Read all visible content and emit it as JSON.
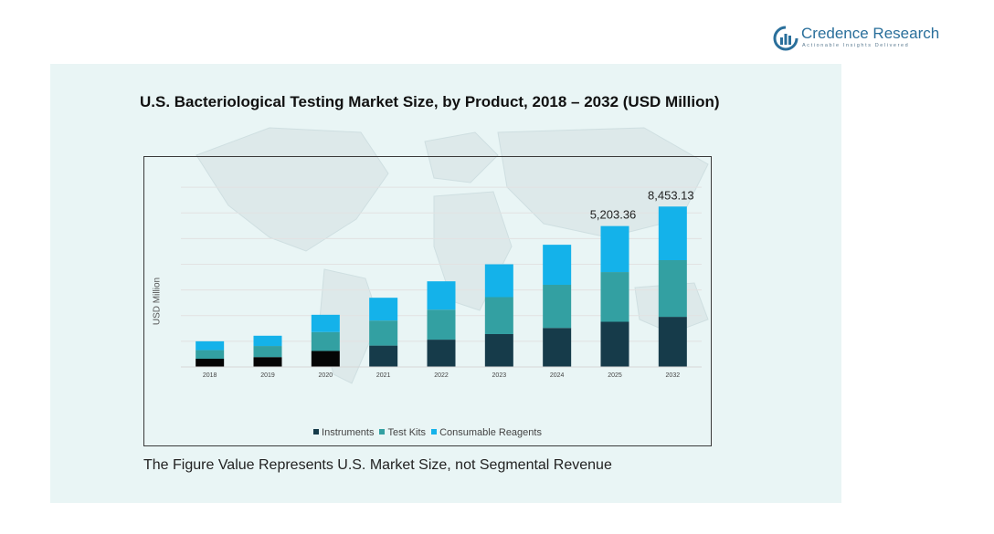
{
  "brand": {
    "name": "Credence Research",
    "tagline": "Actionable Insights Delivered",
    "color": "#2a6f9b",
    "icon": "credence-logo-icon"
  },
  "footnote": "The Figure Value Represents U.S. Market Size, not Segmental Revenue",
  "chart_data": {
    "type": "bar",
    "stacked": true,
    "title": "U.S. Bacteriological  Testing Market Size, by Product, 2018 – 2032 (USD Million)",
    "xlabel": "",
    "ylabel": "USD Million",
    "categories": [
      "2018",
      "2019",
      "2020",
      "2021",
      "2022",
      "2023",
      "2024",
      "2025",
      "2032"
    ],
    "ylim": [
      0,
      10000
    ],
    "grid": true,
    "legend_position": "bottom",
    "series": [
      {
        "name": "Instruments",
        "color": "#163b4a",
        "values": [
          400,
          480,
          780,
          1040,
          1330,
          1600,
          1900,
          2200,
          2440
        ],
        "segment_colors": [
          "#050505",
          "#050505",
          "#050505",
          "#163b4a",
          "#163b4a",
          "#163b4a",
          "#163b4a",
          "#163b4a",
          "#163b4a"
        ]
      },
      {
        "name": "Test Kits",
        "color": "#33a0a2",
        "values": [
          420,
          540,
          920,
          1220,
          1460,
          1800,
          2100,
          2420,
          2760
        ]
      },
      {
        "name": "Consumable Reagents",
        "color": "#14b2ea",
        "values": [
          430,
          500,
          840,
          1110,
          1380,
          1600,
          1950,
          2240,
          2610
        ]
      }
    ],
    "data_labels": [
      {
        "category": "2025",
        "text": "5,203.36"
      },
      {
        "category": "2032",
        "text": "8,453.13"
      }
    ]
  }
}
